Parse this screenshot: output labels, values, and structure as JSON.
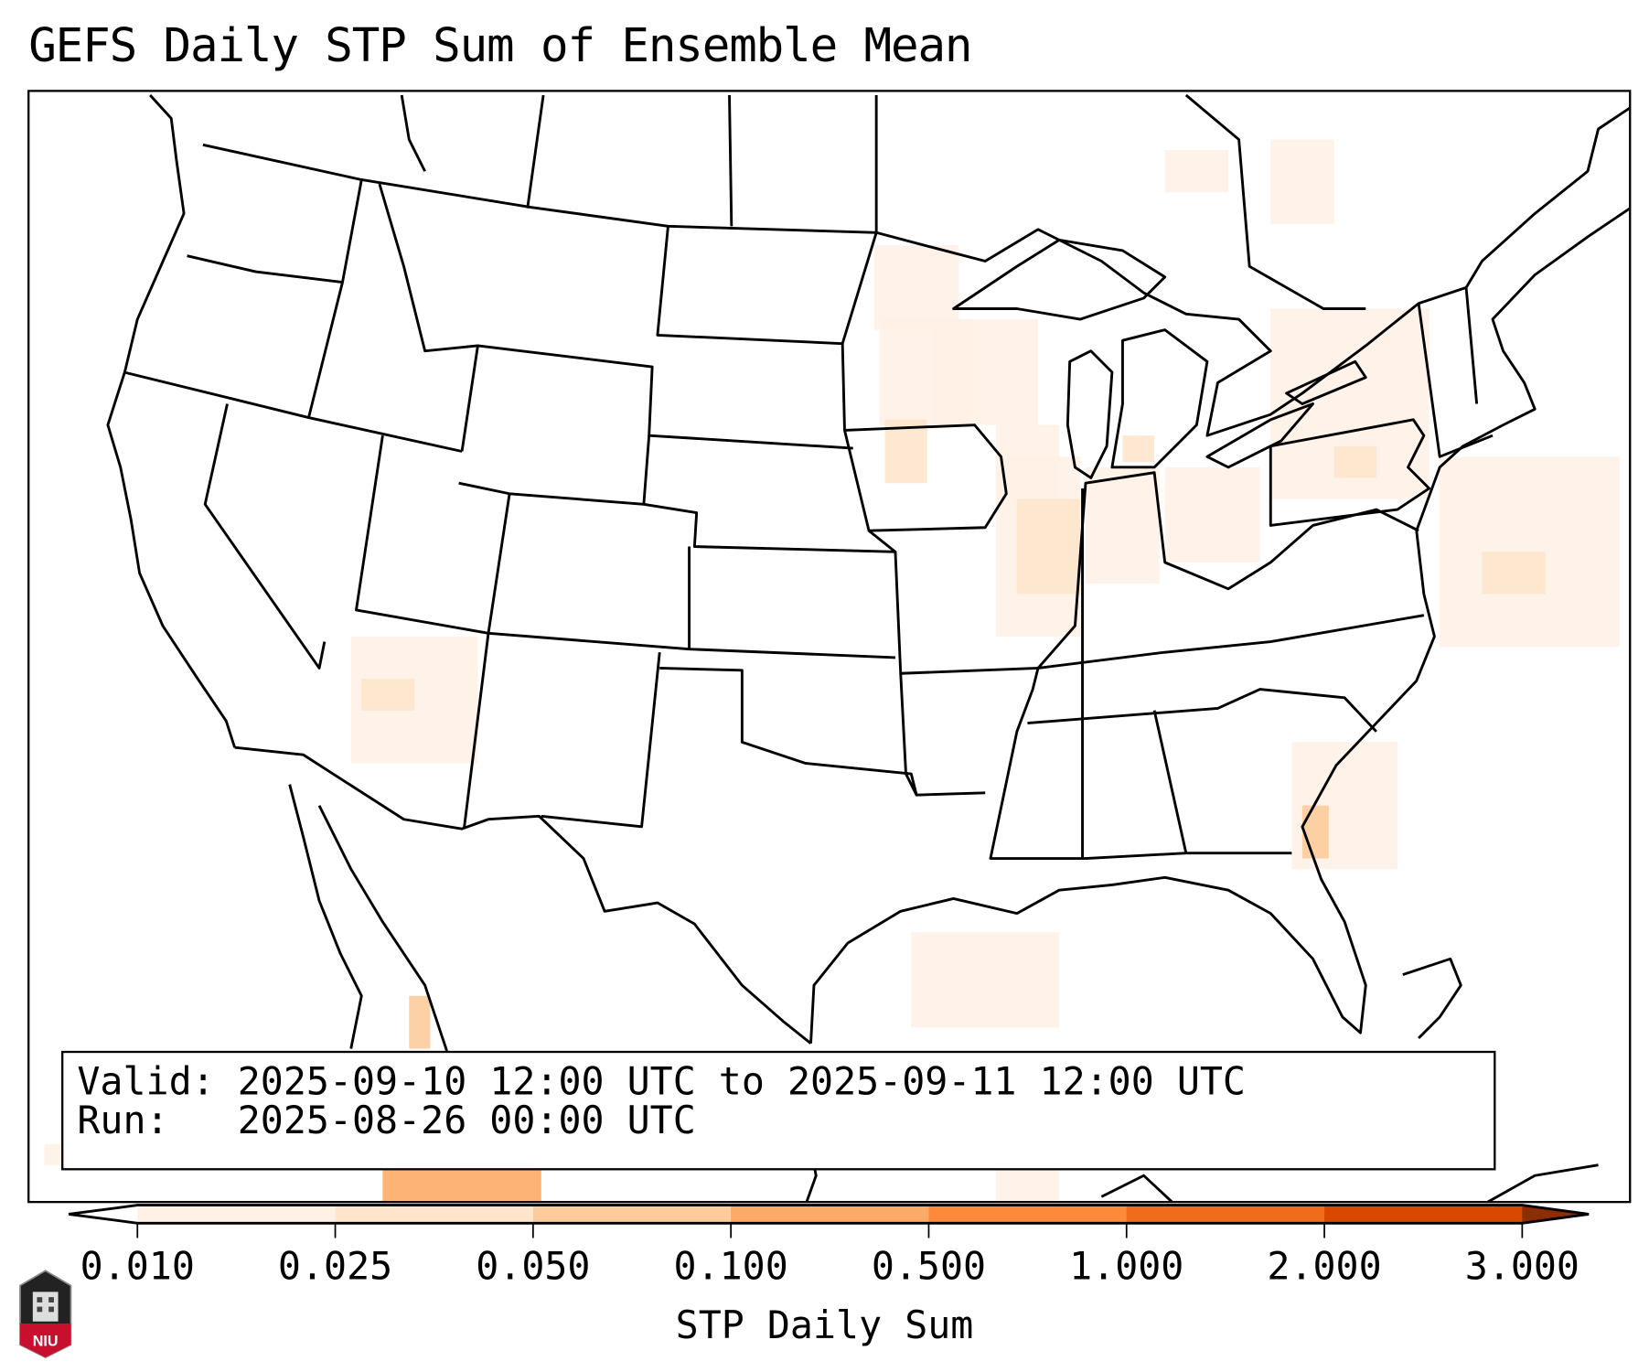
{
  "title": "GEFS Daily STP Sum of Ensemble Mean",
  "info": {
    "valid_label": "Valid:",
    "valid_value": "2025-09-10 12:00 UTC to 2025-09-11 12:00 UTC",
    "run_label": "Run:",
    "run_value": "2025-08-26 00:00 UTC"
  },
  "colorbar": {
    "label": "STP Daily Sum",
    "ticks": [
      "0.010",
      "0.025",
      "0.050",
      "0.100",
      "0.500",
      "1.000",
      "2.000",
      "3.000"
    ],
    "colors": [
      "#fff1e5",
      "#fee5cc",
      "#fdcc9c",
      "#fdaa67",
      "#fd8a3a",
      "#f06b1a",
      "#d94801",
      "#8c2d04"
    ],
    "under_color": "#ffffff"
  },
  "logo": {
    "text": "NIU"
  }
}
